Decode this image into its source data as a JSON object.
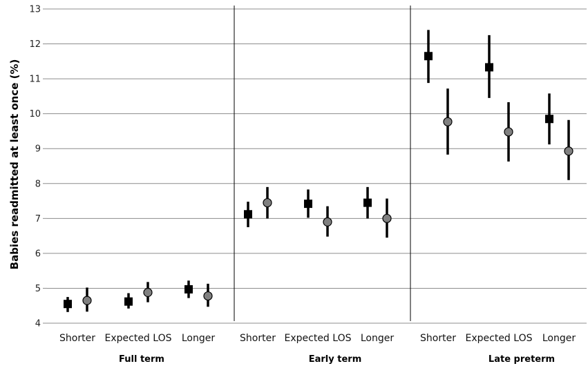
{
  "chart_data": {
    "type": "scatter",
    "ylabel": "Babies readmitted at least once (%)",
    "xlabel": "",
    "ylim": [
      4,
      13
    ],
    "yticks": [
      "4",
      "5",
      "6",
      "7",
      "8",
      "9",
      "10",
      "11",
      "12",
      "13"
    ],
    "grid": true,
    "groups": [
      {
        "label": "Full term",
        "categories": [
          "Shorter",
          "Expected LOS",
          "Longer"
        ]
      },
      {
        "label": "Early term",
        "categories": [
          "Shorter",
          "Expected LOS",
          "Longer"
        ]
      },
      {
        "label": "Late preterm",
        "categories": [
          "Shorter",
          "Expected LOS",
          "Longer"
        ]
      }
    ],
    "series": [
      {
        "marker": "square",
        "color": "#000000",
        "points": [
          {
            "group": "Full term",
            "category": "Shorter",
            "y": 4.55,
            "lo": 4.32,
            "hi": 4.75
          },
          {
            "group": "Full term",
            "category": "Expected LOS",
            "y": 4.62,
            "lo": 4.42,
            "hi": 4.86
          },
          {
            "group": "Full term",
            "category": "Longer",
            "y": 4.97,
            "lo": 4.72,
            "hi": 5.22
          },
          {
            "group": "Early term",
            "category": "Shorter",
            "y": 7.12,
            "lo": 6.75,
            "hi": 7.48
          },
          {
            "group": "Early term",
            "category": "Expected LOS",
            "y": 7.42,
            "lo": 7.02,
            "hi": 7.83
          },
          {
            "group": "Early term",
            "category": "Longer",
            "y": 7.45,
            "lo": 7.0,
            "hi": 7.9
          },
          {
            "group": "Late preterm",
            "category": "Shorter",
            "y": 11.65,
            "lo": 10.88,
            "hi": 12.4
          },
          {
            "group": "Late preterm",
            "category": "Expected LOS",
            "y": 11.33,
            "lo": 10.45,
            "hi": 12.25
          },
          {
            "group": "Late preterm",
            "category": "Longer",
            "y": 9.85,
            "lo": 9.12,
            "hi": 10.58
          }
        ]
      },
      {
        "marker": "circle",
        "color": "#808080",
        "points": [
          {
            "group": "Full term",
            "category": "Shorter",
            "y": 4.65,
            "lo": 4.33,
            "hi": 5.02
          },
          {
            "group": "Full term",
            "category": "Expected LOS",
            "y": 4.88,
            "lo": 4.6,
            "hi": 5.18
          },
          {
            "group": "Full term",
            "category": "Longer",
            "y": 4.78,
            "lo": 4.47,
            "hi": 5.13
          },
          {
            "group": "Early term",
            "category": "Shorter",
            "y": 7.45,
            "lo": 7.0,
            "hi": 7.9
          },
          {
            "group": "Early term",
            "category": "Expected LOS",
            "y": 6.9,
            "lo": 6.48,
            "hi": 7.35
          },
          {
            "group": "Early term",
            "category": "Longer",
            "y": 7.0,
            "lo": 6.45,
            "hi": 7.57
          },
          {
            "group": "Late preterm",
            "category": "Shorter",
            "y": 9.77,
            "lo": 8.83,
            "hi": 10.72
          },
          {
            "group": "Late preterm",
            "category": "Expected LOS",
            "y": 9.48,
            "lo": 8.63,
            "hi": 10.33
          },
          {
            "group": "Late preterm",
            "category": "Longer",
            "y": 8.93,
            "lo": 8.1,
            "hi": 9.82
          }
        ]
      }
    ]
  }
}
